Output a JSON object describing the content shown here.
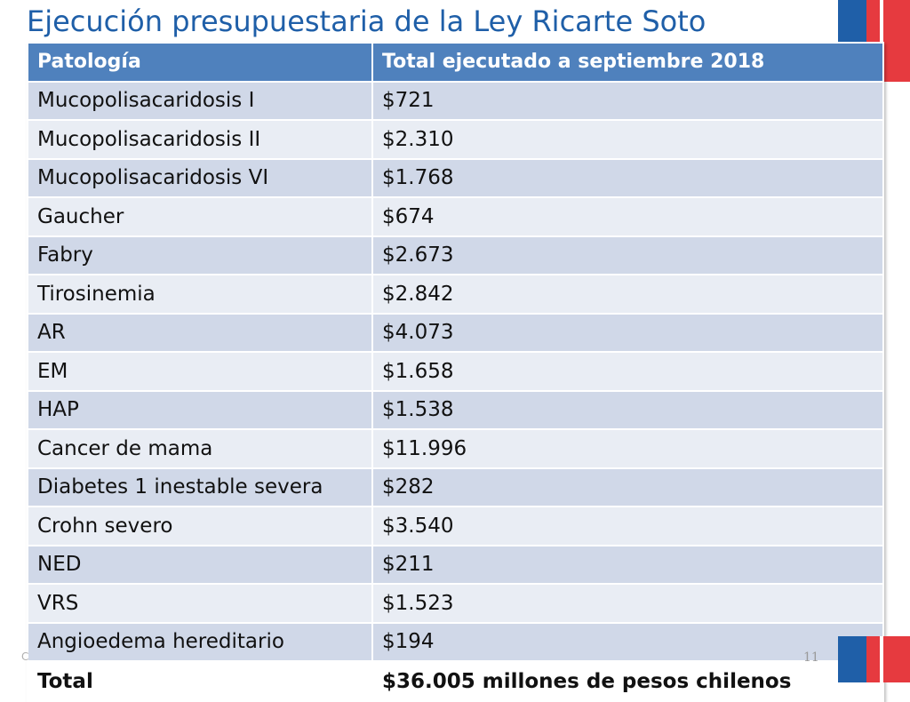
{
  "title": "Ejecución presupuestaria de la Ley Ricarte Soto",
  "table": {
    "headers": [
      "Patología",
      "Total ejecutado  a septiembre 2018"
    ],
    "rows": [
      [
        "Mucopolisacaridosis I",
        "$721"
      ],
      [
        "Mucopolisacaridosis II",
        "$2.310"
      ],
      [
        "Mucopolisacaridosis VI",
        "$1.768"
      ],
      [
        "Gaucher",
        "$674"
      ],
      [
        "Fabry",
        "$2.673"
      ],
      [
        "Tirosinemia",
        "$2.842"
      ],
      [
        "AR",
        "$4.073"
      ],
      [
        "EM",
        "$1.658"
      ],
      [
        "HAP",
        "$1.538"
      ],
      [
        "Cancer de mama",
        "$11.996"
      ],
      [
        "Diabetes 1 inestable severa",
        "$282"
      ],
      [
        "Crohn severo",
        "$3.540"
      ],
      [
        "NED",
        "$211"
      ],
      [
        "VRS",
        "$1.523"
      ],
      [
        "Angioedema hereditario",
        "$194"
      ]
    ],
    "total": [
      "Total",
      "$36.005 millones de pesos chilenos"
    ]
  },
  "footer": {
    "left_text": "C",
    "page_number": "11"
  },
  "colors": {
    "title": "#1f5fa8",
    "header_bg": "#4f81bd",
    "row_odd": "#d0d8e8",
    "row_even": "#e9edf4",
    "flag_blue": "#1f5fa8",
    "flag_red": "#e63a3f"
  }
}
